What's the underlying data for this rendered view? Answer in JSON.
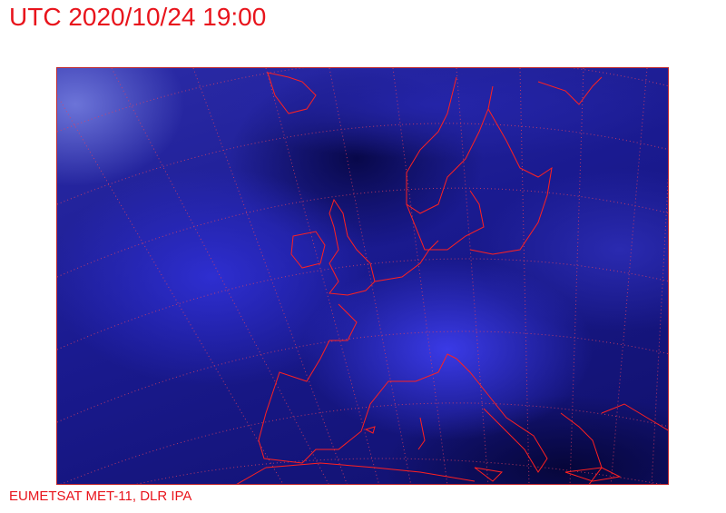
{
  "header": {
    "title": "UTC 2020/10/24 19:00"
  },
  "footer": {
    "credit": "EUMETSAT MET-11, DLR IPA"
  },
  "map": {
    "type": "satellite-image",
    "region": "Europe",
    "colors": {
      "coastline": "#ff2020",
      "graticule": "#e04060",
      "text": "#e8141c"
    }
  }
}
